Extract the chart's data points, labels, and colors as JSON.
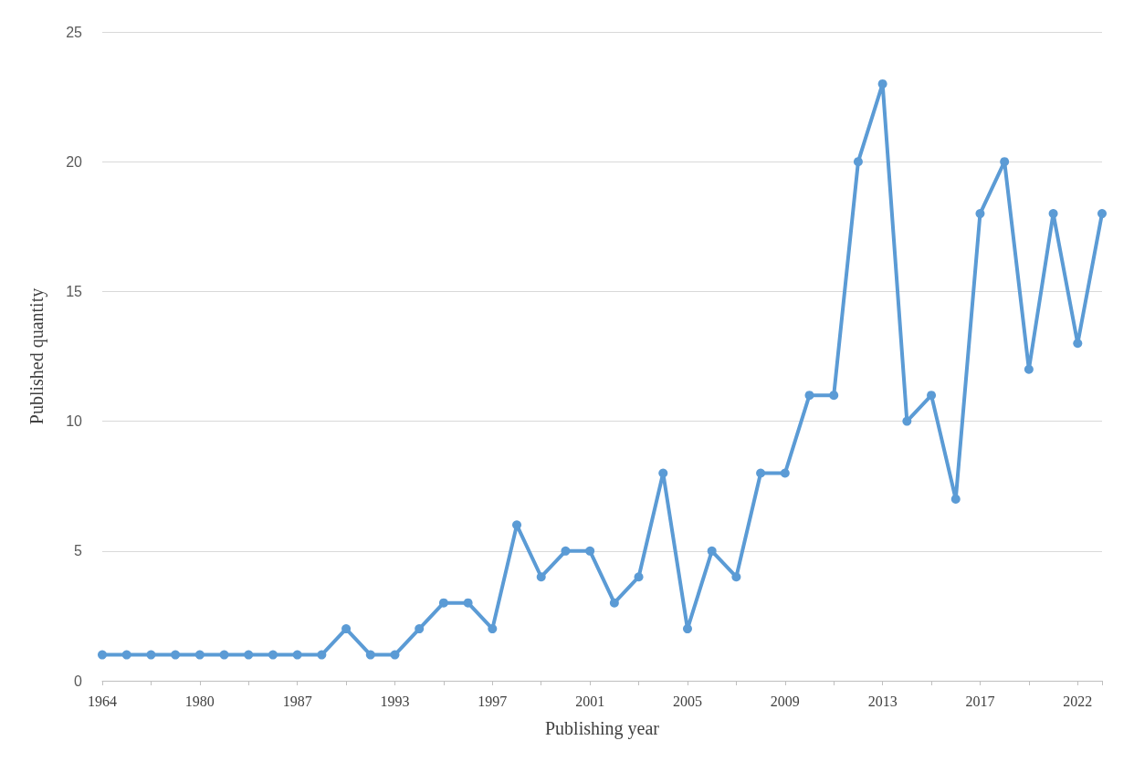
{
  "chart_data": {
    "type": "line",
    "xlabel": "Publishing year",
    "ylabel": "Published quantity",
    "categories": [
      "1964",
      null,
      null,
      null,
      "1980",
      null,
      null,
      null,
      "1987",
      null,
      null,
      null,
      "1993",
      null,
      null,
      null,
      "1997",
      null,
      null,
      null,
      "2001",
      null,
      null,
      null,
      "2005",
      null,
      null,
      null,
      "2009",
      null,
      null,
      null,
      "2013",
      null,
      null,
      null,
      "2017",
      null,
      null,
      null,
      "2022",
      null
    ],
    "series": [
      {
        "color": "#5b9bd5",
        "values": [
          1,
          1,
          1,
          1,
          1,
          1,
          1,
          1,
          1,
          1,
          2,
          1,
          1,
          2,
          3,
          3,
          2,
          6,
          4,
          5,
          5,
          3,
          4,
          8,
          2,
          5,
          4,
          8,
          8,
          11,
          11,
          20,
          23,
          10,
          11,
          7,
          18,
          20,
          12,
          18,
          13,
          18
        ]
      }
    ],
    "ylim": [
      0,
      25
    ],
    "yticks": [
      0,
      5,
      10,
      15,
      20,
      25
    ],
    "grid": "y",
    "marker": "circle",
    "line_style": "solid"
  }
}
